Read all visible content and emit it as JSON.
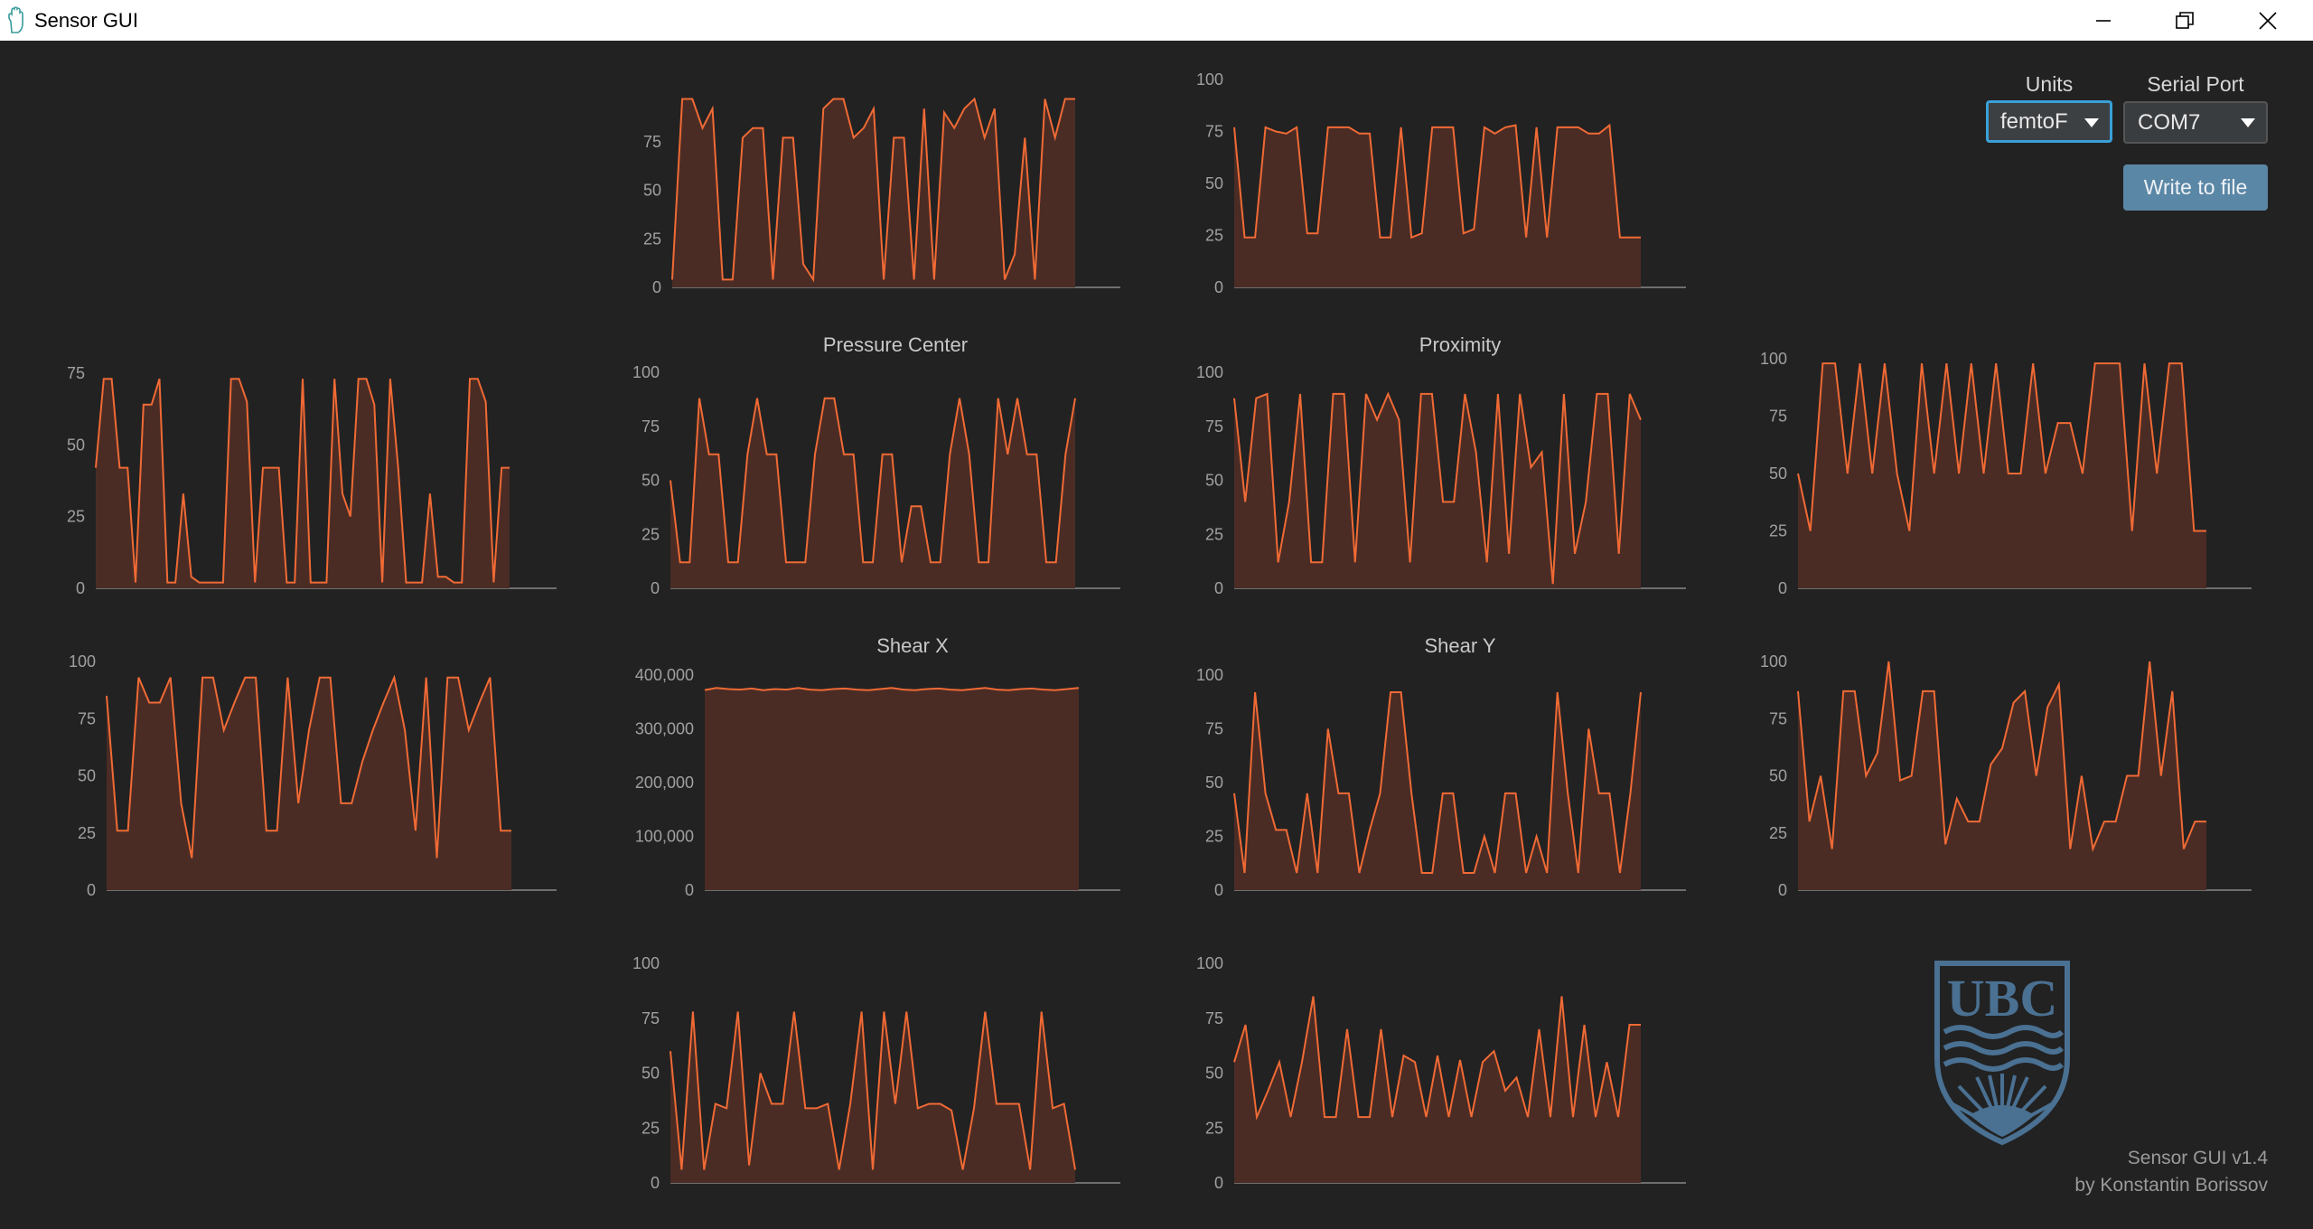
{
  "window": {
    "title": "Sensor GUI",
    "controls": [
      "minimize-icon",
      "restore-icon",
      "close-icon"
    ]
  },
  "controls": {
    "units_label": "Units",
    "units_value": "femtoF",
    "serial_label": "Serial Port",
    "serial_value": "COM7",
    "write_button": "Write to file"
  },
  "footer": {
    "version": "Sensor GUI v1.4",
    "author": "by Konstantin Borissov"
  },
  "logo": {
    "text": "UBC",
    "color": "#4a7092"
  },
  "colors": {
    "line": "#f06a35",
    "fill": "#4a2c25",
    "axis": "#888888",
    "tick_text": "#a0a0a0",
    "title_text": "#c8c8c8"
  },
  "chart_data": [
    {
      "type": "area",
      "title": "",
      "yticks": [
        "0",
        "25",
        "50",
        "75"
      ],
      "ylim": [
        0,
        100
      ],
      "values": [
        4,
        97,
        97,
        82,
        92,
        4,
        4,
        77,
        82,
        82,
        4,
        77,
        77,
        12,
        4,
        92,
        97,
        97,
        77,
        82,
        92,
        4,
        77,
        77,
        4,
        92,
        4,
        90,
        82,
        92,
        97,
        77,
        92,
        4,
        17,
        77,
        4,
        97,
        77,
        97,
        97
      ]
    },
    {
      "type": "area",
      "title": "",
      "yticks": [
        "0",
        "25",
        "50",
        "75",
        "100"
      ],
      "ylim": [
        0,
        100
      ],
      "values": [
        77,
        24,
        24,
        77,
        75,
        74,
        77,
        26,
        26,
        77,
        77,
        77,
        74,
        74,
        24,
        24,
        77,
        24,
        26,
        77,
        77,
        77,
        26,
        28,
        77,
        74,
        77,
        78,
        24,
        77,
        24,
        77,
        77,
        77,
        74,
        74,
        78,
        24,
        24,
        24
      ]
    },
    {
      "type": "area",
      "title": "",
      "yticks": [
        "0",
        "25",
        "50",
        "75"
      ],
      "ylim": [
        0,
        80
      ],
      "values": [
        42,
        73,
        73,
        42,
        42,
        2,
        64,
        64,
        73,
        2,
        2,
        33,
        4,
        2,
        2,
        2,
        2,
        73,
        73,
        65,
        2,
        42,
        42,
        42,
        2,
        2,
        73,
        2,
        2,
        2,
        73,
        33,
        25,
        73,
        73,
        64,
        2,
        73,
        42,
        2,
        2,
        2,
        33,
        4,
        4,
        2,
        2,
        73,
        73,
        65,
        2,
        42,
        42
      ]
    },
    {
      "type": "area",
      "title": "Pressure Center",
      "yticks": [
        "0",
        "25",
        "50",
        "75",
        "100"
      ],
      "ylim": [
        0,
        100
      ],
      "values": [
        50,
        12,
        12,
        88,
        62,
        62,
        12,
        12,
        62,
        88,
        62,
        62,
        12,
        12,
        12,
        62,
        88,
        88,
        62,
        62,
        12,
        12,
        62,
        62,
        12,
        38,
        38,
        12,
        12,
        62,
        88,
        62,
        12,
        12,
        88,
        62,
        88,
        62,
        62,
        12,
        12,
        62,
        88
      ]
    },
    {
      "type": "area",
      "title": "Proximity",
      "yticks": [
        "0",
        "25",
        "50",
        "75",
        "100"
      ],
      "ylim": [
        0,
        100
      ],
      "values": [
        88,
        40,
        88,
        90,
        12,
        40,
        90,
        12,
        12,
        90,
        90,
        12,
        90,
        78,
        90,
        78,
        12,
        90,
        90,
        40,
        40,
        90,
        63,
        12,
        90,
        16,
        90,
        56,
        63,
        2,
        90,
        16,
        40,
        90,
        90,
        16,
        90,
        78
      ]
    },
    {
      "type": "area",
      "title": "",
      "yticks": [
        "0",
        "25",
        "50",
        "75",
        "100"
      ],
      "ylim": [
        0,
        100
      ],
      "values": [
        50,
        25,
        98,
        98,
        50,
        98,
        50,
        98,
        50,
        25,
        98,
        50,
        98,
        50,
        98,
        50,
        98,
        50,
        50,
        98,
        50,
        72,
        72,
        50,
        98,
        98,
        98,
        25,
        98,
        50,
        98,
        98,
        25,
        25
      ]
    },
    {
      "type": "area",
      "title": "",
      "yticks": [
        "0",
        "25",
        "50",
        "75",
        "100"
      ],
      "ylim": [
        0,
        100
      ],
      "values": [
        85,
        26,
        26,
        93,
        82,
        82,
        93,
        38,
        14,
        93,
        93,
        70,
        82,
        93,
        93,
        26,
        26,
        93,
        38,
        70,
        93,
        93,
        38,
        38,
        56,
        70,
        82,
        93,
        70,
        26,
        93,
        14,
        93,
        93,
        70,
        82,
        93,
        26,
        26
      ]
    },
    {
      "type": "area",
      "title": "Shear X",
      "yticks": [
        "0",
        "100,000",
        "200,000",
        "300,000",
        "400,000"
      ],
      "ylim": [
        0,
        400000
      ],
      "values": [
        372000,
        376000,
        374000,
        373000,
        375000,
        372000,
        374000,
        373000,
        376000,
        373000,
        372000,
        374000,
        375000,
        373000,
        372000,
        374000,
        376000,
        373000,
        372000,
        374000,
        375000,
        373000,
        372000,
        374000,
        376000,
        373000,
        372000,
        374000,
        375000,
        373000,
        372000,
        374000,
        376000
      ]
    },
    {
      "type": "area",
      "title": "Shear Y",
      "yticks": [
        "0",
        "25",
        "50",
        "75",
        "100"
      ],
      "ylim": [
        0,
        100
      ],
      "values": [
        45,
        8,
        92,
        45,
        28,
        28,
        8,
        45,
        8,
        75,
        45,
        45,
        8,
        28,
        45,
        92,
        92,
        45,
        8,
        8,
        45,
        45,
        8,
        8,
        25,
        8,
        45,
        45,
        8,
        25,
        8,
        92,
        45,
        8,
        75,
        45,
        45,
        8,
        45,
        92
      ]
    },
    {
      "type": "area",
      "title": "",
      "yticks": [
        "0",
        "25",
        "50",
        "75",
        "100"
      ],
      "ylim": [
        0,
        100
      ],
      "values": [
        87,
        30,
        50,
        18,
        87,
        87,
        50,
        60,
        100,
        48,
        50,
        87,
        87,
        20,
        40,
        30,
        30,
        55,
        62,
        82,
        87,
        50,
        80,
        90,
        18,
        50,
        18,
        30,
        30,
        50,
        50,
        100,
        50,
        87,
        18,
        30,
        30
      ]
    },
    {
      "type": "area",
      "title": "",
      "yticks": [
        "0",
        "25",
        "50",
        "75",
        "100"
      ],
      "ylim": [
        0,
        100
      ],
      "values": [
        60,
        6,
        78,
        6,
        36,
        34,
        78,
        8,
        50,
        36,
        36,
        78,
        34,
        34,
        36,
        6,
        36,
        78,
        6,
        78,
        36,
        78,
        34,
        36,
        36,
        33,
        6,
        34,
        78,
        36,
        36,
        36,
        6,
        78,
        34,
        36,
        6
      ]
    },
    {
      "type": "area",
      "title": "",
      "yticks": [
        "0",
        "25",
        "50",
        "75",
        "100"
      ],
      "ylim": [
        0,
        100
      ],
      "values": [
        55,
        72,
        30,
        42,
        55,
        30,
        55,
        85,
        30,
        30,
        70,
        30,
        30,
        70,
        30,
        58,
        55,
        30,
        58,
        30,
        56,
        30,
        55,
        60,
        42,
        48,
        30,
        70,
        30,
        85,
        30,
        72,
        30,
        55,
        30,
        72,
        72
      ]
    }
  ]
}
